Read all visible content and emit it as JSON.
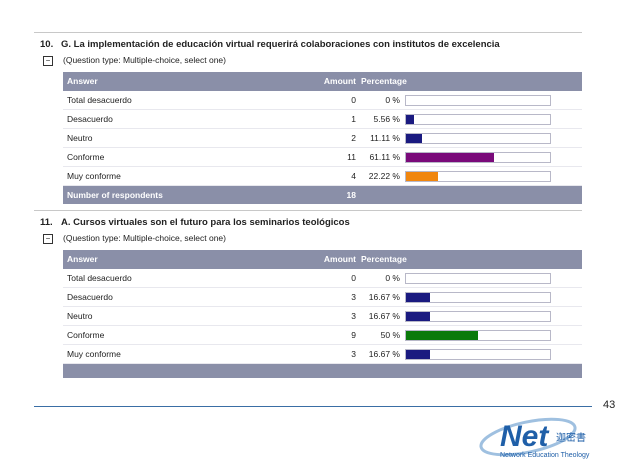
{
  "questions": [
    {
      "number": "10.",
      "title": "G. La implementación de educación virtual requerirá colaboraciones con institutos de excelencia",
      "toggle": "−",
      "type_label": "(Question type: Multiple-choice, select one)",
      "headers": {
        "answer": "Answer",
        "amount": "Amount",
        "percentage": "Percentage"
      },
      "rows": [
        {
          "answer": "Total desacuerdo",
          "amount": "0",
          "pct": "0 %",
          "fraction": 0.0,
          "color": "#1a1a80"
        },
        {
          "answer": "Desacuerdo",
          "amount": "1",
          "pct": "5.56 %",
          "fraction": 0.0556,
          "color": "#1a1a80"
        },
        {
          "answer": "Neutro",
          "amount": "2",
          "pct": "11.11 %",
          "fraction": 0.1111,
          "color": "#1a1a80"
        },
        {
          "answer": "Conforme",
          "amount": "11",
          "pct": "61.11 %",
          "fraction": 0.6111,
          "color": "#7a0a7a"
        },
        {
          "answer": "Muy conforme",
          "amount": "4",
          "pct": "22.22 %",
          "fraction": 0.2222,
          "color": "#f0860e"
        }
      ],
      "footer": {
        "label": "Number of respondents",
        "value": "18"
      }
    },
    {
      "number": "11.",
      "title": "A. Cursos virtuales son el futuro para los seminarios teológicos",
      "toggle": "−",
      "type_label": "(Question type: Multiple-choice, select one)",
      "headers": {
        "answer": "Answer",
        "amount": "Amount",
        "percentage": "Percentage"
      },
      "rows": [
        {
          "answer": "Total desacuerdo",
          "amount": "0",
          "pct": "0 %",
          "fraction": 0.0,
          "color": "#1a1a80"
        },
        {
          "answer": "Desacuerdo",
          "amount": "3",
          "pct": "16.67 %",
          "fraction": 0.1667,
          "color": "#1a1a80"
        },
        {
          "answer": "Neutro",
          "amount": "3",
          "pct": "16.67 %",
          "fraction": 0.1667,
          "color": "#1a1a80"
        },
        {
          "answer": "Conforme",
          "amount": "9",
          "pct": "50 %",
          "fraction": 0.5,
          "color": "#0a7a0a"
        },
        {
          "answer": "Muy conforme",
          "amount": "3",
          "pct": "16.67 %",
          "fraction": 0.1667,
          "color": "#1a1a80"
        }
      ]
    }
  ],
  "page_number": "43",
  "logo": {
    "word": "Net",
    "tagline": "Network Education Theology",
    "glyphs": "迦密書",
    "color": "#1f5fa8"
  }
}
